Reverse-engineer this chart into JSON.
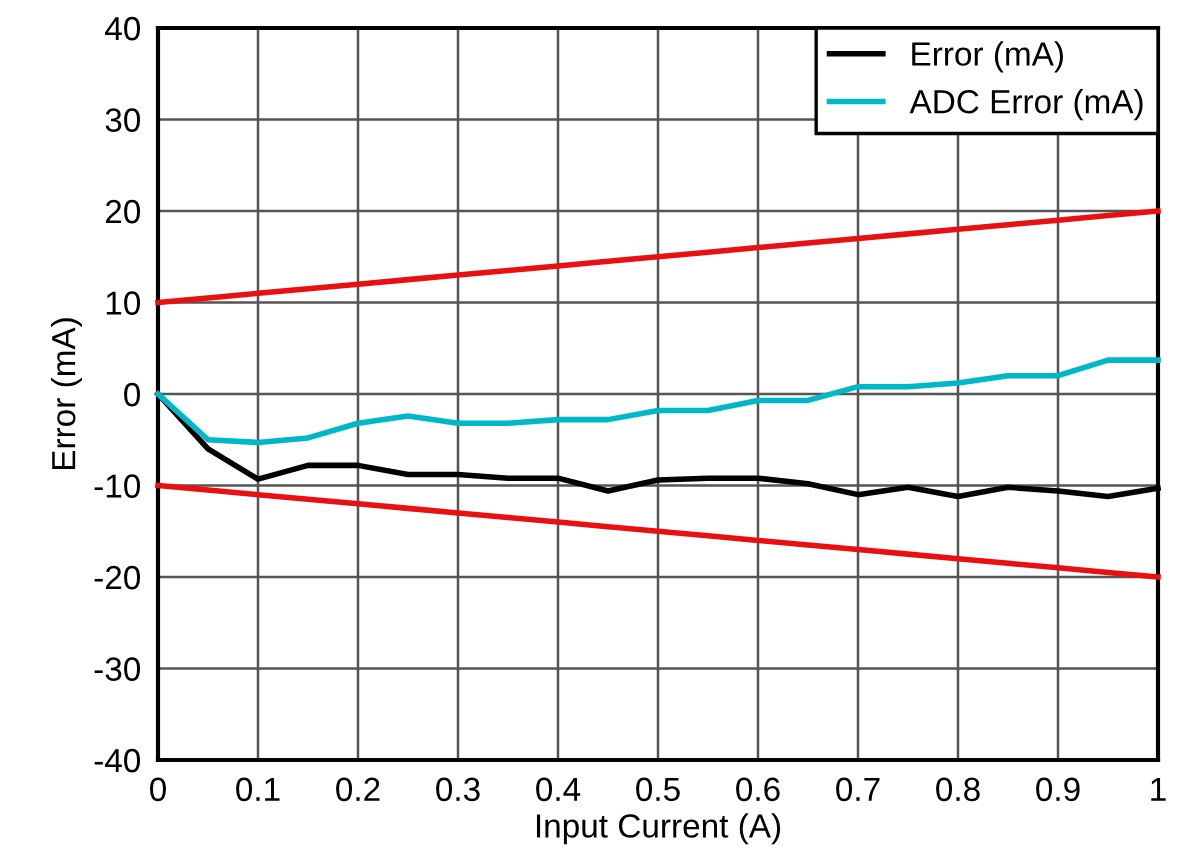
{
  "chart_data": {
    "type": "line",
    "xlabel": "Input Current (A)",
    "ylabel": "Error (mA)",
    "x": [
      0,
      0.05,
      0.1,
      0.15,
      0.2,
      0.25,
      0.3,
      0.35,
      0.4,
      0.45,
      0.5,
      0.55,
      0.6,
      0.65,
      0.7,
      0.75,
      0.8,
      0.85,
      0.9,
      0.95,
      1
    ],
    "series": [
      {
        "name": "Error (mA)",
        "color": "#000000",
        "values": [
          0,
          -6,
          -9.3,
          -7.8,
          -7.8,
          -8.8,
          -8.8,
          -9.2,
          -9.2,
          -10.6,
          -9.4,
          -9.2,
          -9.2,
          -9.8,
          -11,
          -10.2,
          -11.2,
          -10.2,
          -10.6,
          -11.2,
          -10.3
        ]
      },
      {
        "name": "ADC Error (mA)",
        "color": "#00b7c8",
        "values": [
          0,
          -5,
          -5.3,
          -4.8,
          -3.2,
          -2.4,
          -3.2,
          -3.2,
          -2.8,
          -2.8,
          -1.8,
          -1.8,
          -0.7,
          -0.7,
          0.8,
          0.8,
          1.2,
          2,
          2,
          3.7,
          3.7
        ]
      },
      {
        "color": "#e81010",
        "values": [
          10,
          10.5,
          11,
          11.5,
          12,
          12.5,
          13,
          13.5,
          14,
          14.5,
          15,
          15.5,
          16,
          16.5,
          17,
          17.5,
          18,
          18.5,
          19,
          19.5,
          20
        ]
      },
      {
        "color": "#e81010",
        "values": [
          -10,
          -10.5,
          -11,
          -11.5,
          -12,
          -12.5,
          -13,
          -13.5,
          -14,
          -14.5,
          -15,
          -15.5,
          -16,
          -16.5,
          -17,
          -17.5,
          -18,
          -18.5,
          -19,
          -19.5,
          -20
        ]
      }
    ],
    "xlim": [
      0,
      1
    ],
    "xticks": [
      0,
      0.1,
      0.2,
      0.3,
      0.4,
      0.5,
      0.6,
      0.7,
      0.8,
      0.9,
      1
    ],
    "ylim": [
      -40,
      40
    ],
    "yticks": [
      -40,
      -30,
      -20,
      -10,
      0,
      10,
      20,
      30,
      40
    ],
    "grid": true,
    "legend": "top right",
    "marker": "none",
    "line_style": "solid"
  }
}
